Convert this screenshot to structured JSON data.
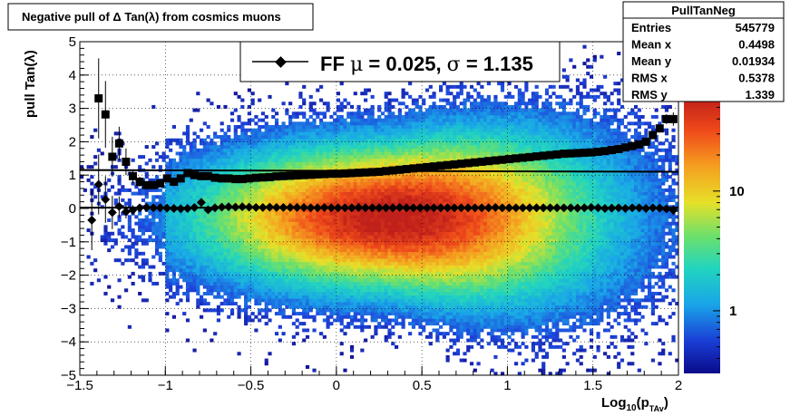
{
  "chart_data": {
    "type": "heatmap",
    "title": "Negative pull of Δ Tan(λ) from cosmics muons",
    "ylabel": "pull Tan(λ)",
    "xlabel_main": "Log",
    "xlabel_sub": "10",
    "xlabel_paren": "(p",
    "xlabel_sub2": "TAv",
    "xlabel_close": ")",
    "xlim": [
      -1.5,
      2.0
    ],
    "ylim": [
      -5,
      5
    ],
    "x_ticks": [
      -1.5,
      -1,
      -0.5,
      0,
      0.5,
      1,
      1.5,
      2
    ],
    "x_tick_labels": [
      "−1.5",
      "−1",
      "−0.5",
      "0",
      "0.5",
      "1",
      "1.5",
      "2"
    ],
    "y_ticks": [
      -5,
      -4,
      -3,
      -2,
      -1,
      0,
      1,
      2,
      3,
      4,
      5
    ],
    "y_tick_labels": [
      "−5",
      "−4",
      "−3",
      "−2",
      "−1",
      "0",
      "1",
      "2",
      "3",
      "4",
      "5"
    ],
    "grid": true,
    "colorbar": {
      "scale": "log",
      "tick_labels": [
        "1",
        "10"
      ],
      "tick_values": [
        1,
        10
      ]
    },
    "stats": {
      "title": "PullTanNeg",
      "rows": [
        {
          "label": "Entries",
          "value": "545779"
        },
        {
          "label": "Mean x",
          "value": "0.4498"
        },
        {
          "label": "Mean y",
          "value": "0.01934"
        },
        {
          "label": "RMS x",
          "value": "0.5378"
        },
        {
          "label": "RMS y",
          "value": "1.339"
        }
      ]
    },
    "legend": {
      "prefix": "FF ",
      "mu": "μ",
      "mu_text": " =  0.025, ",
      "sigma": "σ",
      "sigma_text": " =   1.135"
    },
    "fit_lines": {
      "mean": 0.025,
      "sigma": 1.135
    },
    "mean_profile": {
      "x": [
        -1.43,
        -1.39,
        -1.35,
        -1.31,
        -1.27,
        -1.23,
        -1.19,
        -1.15,
        -1.11,
        -1.07,
        -1.03,
        -0.99,
        -0.95,
        -0.91,
        -0.87,
        -0.83,
        -0.79,
        -0.75,
        -0.71,
        -0.67,
        -0.63,
        -0.59,
        -0.55,
        -0.51,
        -0.47,
        -0.43,
        -0.39,
        -0.35,
        -0.31,
        -0.27,
        -0.23,
        -0.19,
        -0.15,
        -0.11,
        -0.07,
        -0.03,
        0.01,
        0.05,
        0.09,
        0.13,
        0.17,
        0.21,
        0.25,
        0.29,
        0.33,
        0.37,
        0.41,
        0.45,
        0.49,
        0.53,
        0.57,
        0.61,
        0.65,
        0.69,
        0.73,
        0.77,
        0.81,
        0.85,
        0.89,
        0.93,
        0.97,
        1.01,
        1.05,
        1.09,
        1.13,
        1.17,
        1.21,
        1.25,
        1.29,
        1.33,
        1.37,
        1.41,
        1.45,
        1.49,
        1.53,
        1.57,
        1.61,
        1.65,
        1.69,
        1.73,
        1.77,
        1.81,
        1.85,
        1.89,
        1.93,
        1.97
      ],
      "y": [
        -0.35,
        0.72,
        0.27,
        -0.12,
        0.06,
        -0.1,
        -0.05,
        0.02,
        0.03,
        0.02,
        0.02,
        0.01,
        0.0,
        -0.01,
        0.0,
        0.03,
        0.18,
        -0.04,
        0.02,
        0.04,
        0.05,
        0.04,
        0.05,
        0.04,
        0.03,
        0.03,
        0.04,
        0.03,
        0.03,
        0.03,
        0.03,
        0.03,
        0.02,
        0.02,
        0.03,
        0.02,
        0.02,
        0.02,
        0.02,
        0.03,
        0.02,
        0.02,
        0.02,
        0.02,
        0.02,
        0.03,
        0.02,
        0.02,
        0.02,
        0.02,
        0.02,
        0.02,
        0.02,
        0.02,
        0.02,
        0.02,
        0.02,
        0.02,
        0.02,
        0.03,
        0.02,
        0.02,
        0.02,
        0.02,
        0.02,
        0.02,
        0.02,
        0.02,
        0.02,
        0.02,
        0.02,
        0.01,
        0.02,
        0.03,
        0.02,
        0.0,
        0.01,
        0.02,
        0.0,
        0.02,
        0.02,
        0.0,
        0.02,
        0.01,
        -0.01,
        -0.05
      ],
      "yerr": [
        0.9,
        0.9,
        0.7,
        0.5,
        0.3,
        0.2,
        0.15,
        0.1,
        0.08,
        0.06,
        0.05,
        0.04,
        0.03,
        0.03,
        0.03,
        0.03,
        0.03,
        0.02,
        0.02,
        0.02,
        0.02,
        0.02,
        0.02,
        0.02,
        0.02,
        0.02,
        0.02,
        0.02,
        0.02,
        0.02,
        0.02,
        0.02,
        0.02,
        0.02,
        0.02,
        0.02,
        0.02,
        0.02,
        0.02,
        0.02,
        0.02,
        0.02,
        0.02,
        0.02,
        0.02,
        0.02,
        0.02,
        0.02,
        0.02,
        0.02,
        0.02,
        0.02,
        0.02,
        0.02,
        0.02,
        0.02,
        0.02,
        0.02,
        0.02,
        0.02,
        0.02,
        0.02,
        0.02,
        0.02,
        0.02,
        0.02,
        0.02,
        0.02,
        0.02,
        0.02,
        0.02,
        0.02,
        0.02,
        0.02,
        0.02,
        0.03,
        0.03,
        0.03,
        0.04,
        0.04,
        0.05,
        0.06,
        0.08,
        0.1,
        0.12,
        0.15
      ]
    },
    "rms_profile": {
      "x": [
        -1.39,
        -1.35,
        -1.31,
        -1.27,
        -1.23,
        -1.19,
        -1.15,
        -1.11,
        -1.07,
        -1.03,
        -0.99,
        -0.95,
        -0.91,
        -0.87,
        -0.83,
        -0.79,
        -0.75,
        -0.71,
        -0.67,
        -0.63,
        -0.59,
        -0.55,
        -0.51,
        -0.47,
        -0.43,
        -0.39,
        -0.35,
        -0.31,
        -0.27,
        -0.23,
        -0.19,
        -0.15,
        -0.11,
        -0.07,
        -0.03,
        0.01,
        0.05,
        0.09,
        0.13,
        0.17,
        0.21,
        0.25,
        0.29,
        0.33,
        0.37,
        0.41,
        0.45,
        0.49,
        0.53,
        0.57,
        0.61,
        0.65,
        0.69,
        0.73,
        0.77,
        0.81,
        0.85,
        0.89,
        0.93,
        0.97,
        1.01,
        1.05,
        1.09,
        1.13,
        1.17,
        1.21,
        1.25,
        1.29,
        1.33,
        1.37,
        1.41,
        1.45,
        1.49,
        1.53,
        1.57,
        1.61,
        1.65,
        1.69,
        1.73,
        1.77,
        1.81,
        1.85,
        1.89,
        1.93,
        1.97
      ],
      "y": [
        3.3,
        2.82,
        1.55,
        1.95,
        1.4,
        0.97,
        0.8,
        0.7,
        0.7,
        0.75,
        0.9,
        0.8,
        0.9,
        1.06,
        1.0,
        0.97,
        0.97,
        0.92,
        0.9,
        0.9,
        0.88,
        0.88,
        0.9,
        0.92,
        0.93,
        0.94,
        0.96,
        0.97,
        0.98,
        0.99,
        1.0,
        1.01,
        1.02,
        1.03,
        1.04,
        1.04,
        1.05,
        1.06,
        1.07,
        1.08,
        1.09,
        1.1,
        1.12,
        1.14,
        1.16,
        1.18,
        1.2,
        1.22,
        1.24,
        1.26,
        1.28,
        1.3,
        1.32,
        1.34,
        1.36,
        1.38,
        1.4,
        1.42,
        1.44,
        1.46,
        1.48,
        1.5,
        1.52,
        1.54,
        1.56,
        1.58,
        1.6,
        1.62,
        1.64,
        1.65,
        1.66,
        1.67,
        1.68,
        1.7,
        1.72,
        1.75,
        1.78,
        1.83,
        1.87,
        1.92,
        2.0,
        2.2,
        2.4,
        2.68,
        2.68
      ],
      "yerr": [
        1.2,
        1.0,
        0.6,
        0.5,
        0.4,
        0.2,
        0.15,
        0.1,
        0.08,
        0.06,
        0.05,
        0.04,
        0.03,
        0.03,
        0.03,
        0.03,
        0.02,
        0.02,
        0.02,
        0.02,
        0.02,
        0.02,
        0.02,
        0.02,
        0.02,
        0.02,
        0.02,
        0.02,
        0.02,
        0.02,
        0.02,
        0.02,
        0.02,
        0.02,
        0.02,
        0.02,
        0.02,
        0.02,
        0.02,
        0.02,
        0.02,
        0.02,
        0.02,
        0.02,
        0.02,
        0.02,
        0.02,
        0.02,
        0.02,
        0.02,
        0.02,
        0.02,
        0.02,
        0.02,
        0.02,
        0.02,
        0.02,
        0.02,
        0.02,
        0.02,
        0.02,
        0.02,
        0.02,
        0.02,
        0.02,
        0.02,
        0.02,
        0.02,
        0.02,
        0.02,
        0.02,
        0.02,
        0.02,
        0.02,
        0.03,
        0.03,
        0.04,
        0.04,
        0.05,
        0.06,
        0.08,
        0.1,
        0.12,
        0.15,
        0.2
      ]
    }
  }
}
